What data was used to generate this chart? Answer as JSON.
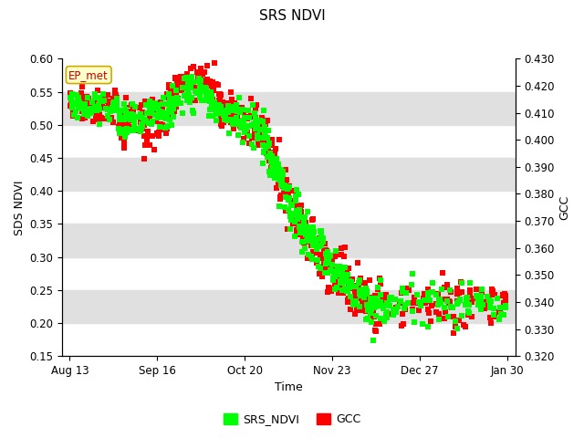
{
  "title": "SRS NDVI",
  "ylabel_left": "SDS NDVI",
  "ylabel_right": "GCC",
  "xlabel": "Time",
  "ylim_left": [
    0.15,
    0.6
  ],
  "ylim_right": [
    0.32,
    0.43
  ],
  "yticks_left": [
    0.15,
    0.2,
    0.25,
    0.3,
    0.35,
    0.4,
    0.45,
    0.5,
    0.55,
    0.6
  ],
  "yticks_right": [
    0.32,
    0.33,
    0.34,
    0.35,
    0.36,
    0.37,
    0.38,
    0.39,
    0.4,
    0.41,
    0.42,
    0.43
  ],
  "xtick_labels": [
    "Aug 13",
    "Sep 16",
    "Oct 20",
    "Nov 23",
    "Dec 27",
    "Jan 30"
  ],
  "annotation_text": "EP_met",
  "legend_labels": [
    "SRS_NDVI",
    "GCC"
  ],
  "color_green": "#00FF00",
  "color_red": "#FF0000",
  "bg_color": "#ffffff",
  "band_color": "#e0e0e0",
  "marker_size": 18,
  "title_fontsize": 11,
  "axis_fontsize": 9,
  "tick_fontsize": 8.5
}
